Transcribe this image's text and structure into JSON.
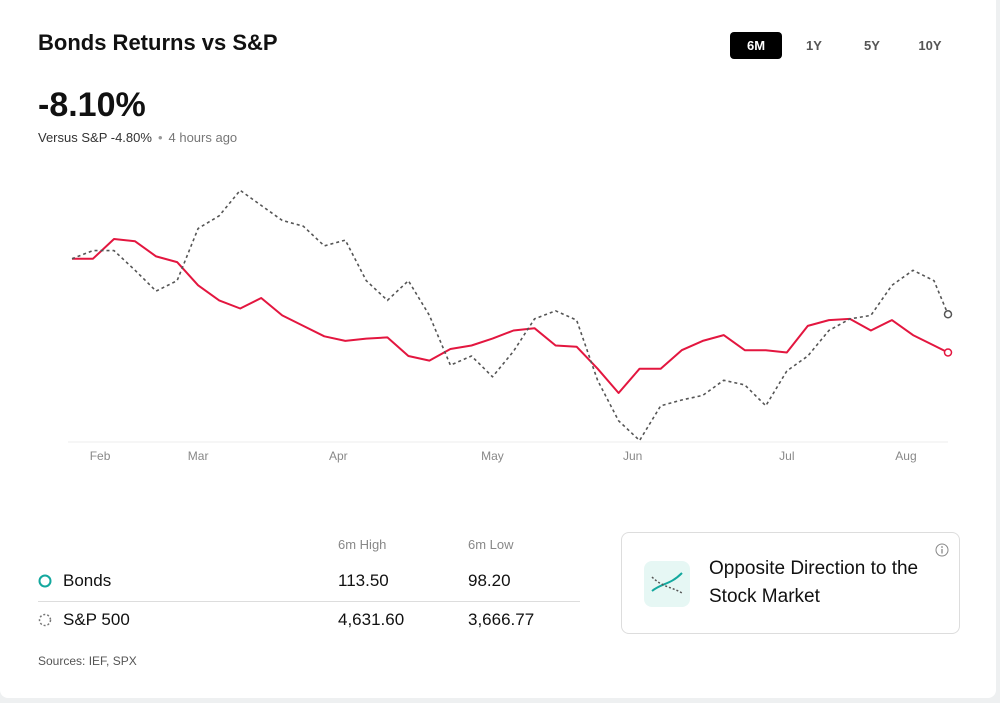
{
  "header": {
    "title": "Bonds Returns vs S&P",
    "tabs": [
      "6M",
      "1Y",
      "5Y",
      "10Y"
    ],
    "active_tab": 0
  },
  "summary": {
    "value": "-8.10%",
    "comparison": "Versus S&P -4.80%",
    "time": "4 hours ago"
  },
  "table": {
    "columns": [
      "6m High",
      "6m Low"
    ],
    "rows": [
      [
        "113.50",
        "98.20"
      ],
      [
        "4,631.60",
        "3,666.77"
      ]
    ]
  },
  "card": {
    "text": "Opposite Direction to the Stock Market"
  },
  "sources": "Sources: IEF, SPX",
  "chart_data": {
    "type": "line",
    "x": [
      0,
      3,
      6,
      9,
      12,
      15,
      18,
      21,
      24,
      27,
      30,
      33,
      36,
      39,
      42,
      45,
      48,
      51,
      54,
      57,
      60,
      63,
      66,
      69,
      72,
      75,
      78,
      81,
      84,
      87,
      90,
      93,
      96,
      99,
      102,
      105,
      108,
      111,
      114,
      117,
      120,
      123,
      125
    ],
    "xlim": [
      0,
      125
    ],
    "xticks": [
      {
        "value": 4,
        "label": "Feb"
      },
      {
        "value": 18,
        "label": "Mar"
      },
      {
        "value": 38,
        "label": "Apr"
      },
      {
        "value": 60,
        "label": "May"
      },
      {
        "value": 80,
        "label": "Jun"
      },
      {
        "value": 102,
        "label": "Jul"
      },
      {
        "value": 119,
        "label": "Aug"
      }
    ],
    "ylim": [
      -16,
      8
    ],
    "series": [
      {
        "name": "Bonds",
        "color": "#e3163f",
        "dashed": false,
        "marker_color": "#13a89e",
        "values": [
          0,
          0,
          1.7,
          1.5,
          0.2,
          -0.3,
          -2.3,
          -3.6,
          -4.3,
          -3.4,
          -4.9,
          -5.8,
          -6.7,
          -7.1,
          -6.9,
          -6.8,
          -8.4,
          -8.8,
          -7.8,
          -7.5,
          -6.9,
          -6.2,
          -6.0,
          -7.5,
          -7.6,
          -9.5,
          -11.6,
          -9.5,
          -9.5,
          -7.9,
          -7.1,
          -6.6,
          -7.9,
          -7.9,
          -8.1,
          -5.8,
          -5.3,
          -5.2,
          -6.2,
          -5.3,
          -6.6,
          -7.5,
          -8.1
        ]
      },
      {
        "name": "S&P 500",
        "color": "#555555",
        "dashed": true,
        "marker_color": "#777777",
        "values": [
          0,
          0.7,
          0.7,
          -1.0,
          -2.8,
          -1.9,
          2.6,
          3.7,
          5.9,
          4.6,
          3.3,
          2.8,
          1.1,
          1.6,
          -1.9,
          -3.6,
          -1.9,
          -4.9,
          -9.2,
          -8.4,
          -10.2,
          -8.0,
          -5.2,
          -4.5,
          -5.3,
          -10.5,
          -14.0,
          -15.7,
          -12.7,
          -12.2,
          -11.8,
          -10.5,
          -10.9,
          -12.7,
          -9.7,
          -8.4,
          -6.2,
          -5.2,
          -4.9,
          -2.3,
          -1.0,
          -1.9,
          -4.8
        ]
      }
    ]
  }
}
